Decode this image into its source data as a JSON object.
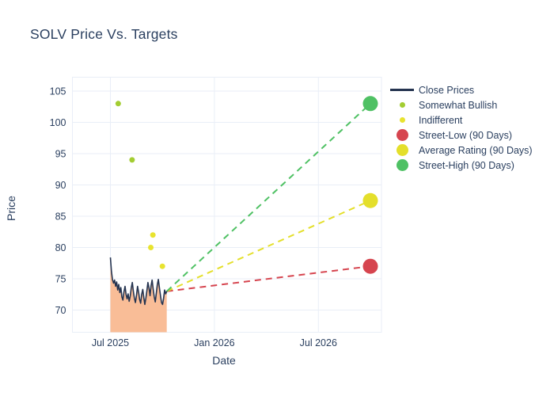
{
  "chart_data": {
    "type": "line",
    "title": "SOLV Price Vs. Targets",
    "xlabel": "Date",
    "ylabel": "Price",
    "x_tick_labels": [
      "Jul 2025",
      "Jan 2026",
      "Jul 2026"
    ],
    "x_tick_months": [
      6,
      12,
      18
    ],
    "y_ticks": [
      70,
      75,
      80,
      85,
      90,
      95,
      100,
      105
    ],
    "y_range": [
      66.5,
      107.2
    ],
    "x_range_months": [
      3.8,
      21.7
    ],
    "grid": true,
    "legend_position": "right",
    "background_color": "#ffffff",
    "grid_color": "#e9eef7",
    "text_color": "#2a3f5f",
    "close_prices": {
      "label": "Close Prices",
      "color": "#253450",
      "fill_color": "#f9bd97",
      "x_start_month": 6.0,
      "x_end_month": 9.25,
      "values": [
        78.4,
        76.2,
        74.9,
        74.3,
        74.8,
        73.8,
        74.5,
        73.2,
        74.1,
        72.8,
        73.6,
        72.1,
        71.6,
        72.9,
        73.8,
        72.5,
        71.8,
        72.6,
        71.4,
        72.2,
        73.6,
        74.4,
        73.0,
        71.9,
        71.2,
        72.4,
        73.8,
        72.9,
        71.7,
        71.1,
        72.5,
        73.3,
        72.0,
        70.9,
        71.9,
        73.1,
        74.4,
        73.5,
        72.3,
        73.9,
        74.8,
        73.4,
        72.1,
        71.3,
        72.7,
        74.1,
        74.9,
        73.6,
        72.3,
        71.2,
        70.9,
        71.9,
        73.2,
        72.6,
        73.0
      ]
    },
    "ratings": [
      {
        "label": "Somewhat Bullish",
        "color": "#a3cd32",
        "marker_size": 7,
        "points": [
          {
            "month": 6.45,
            "price": 103
          },
          {
            "month": 7.25,
            "price": 94
          }
        ]
      },
      {
        "label": "Indifferent",
        "color": "#e8e32f",
        "marker_size": 7,
        "points": [
          {
            "month": 8.45,
            "price": 82
          },
          {
            "month": 8.33,
            "price": 80
          },
          {
            "month": 9.0,
            "price": 77
          }
        ]
      }
    ],
    "projection_start": {
      "month": 9.25,
      "price": 73.0
    },
    "targets": [
      {
        "label": "Street-Low (90 Days)",
        "color": "#d6454f",
        "month": 21.0,
        "price": 77,
        "marker_size": 19
      },
      {
        "label": "Average Rating (90 Days)",
        "color": "#e4df2b",
        "month": 21.0,
        "price": 87.5,
        "marker_size": 19
      },
      {
        "label": "Street-High (90 Days)",
        "color": "#4fc164",
        "month": 21.0,
        "price": 103,
        "marker_size": 19
      }
    ]
  },
  "legend": {
    "items": [
      {
        "label": "Close Prices",
        "swatch": "line",
        "color": "#253450",
        "size": 0
      },
      {
        "label": "Somewhat Bullish",
        "swatch": "dot",
        "color": "#a3cd32",
        "size": 7
      },
      {
        "label": "Indifferent",
        "swatch": "dot",
        "color": "#e8e32f",
        "size": 7
      },
      {
        "label": "Street-Low (90 Days)",
        "swatch": "dot",
        "color": "#d6454f",
        "size": 15
      },
      {
        "label": "Average Rating (90 Days)",
        "swatch": "dot",
        "color": "#e4df2b",
        "size": 15
      },
      {
        "label": "Street-High (90 Days)",
        "swatch": "dot",
        "color": "#4fc164",
        "size": 15
      }
    ]
  }
}
